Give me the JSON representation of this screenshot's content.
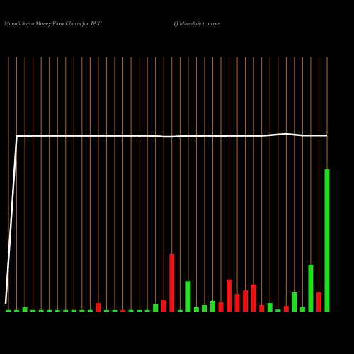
{
  "chart_data": {
    "type": "bar",
    "title": "MunafaSutra  Money Flow  Charts for TAXI",
    "subtitle": "() MunafaSutra.com",
    "categories": [
      null,
      null,
      null,
      null,
      null,
      null,
      null,
      null,
      null,
      null,
      null,
      null,
      null,
      null,
      null,
      null,
      null,
      null,
      null,
      null,
      null,
      null,
      null,
      null,
      null,
      null,
      null,
      null,
      null,
      null,
      null,
      null,
      null,
      null,
      null,
      null,
      null,
      null,
      null,
      null
    ],
    "values": [
      0.6,
      0.6,
      1.7,
      0.6,
      0.6,
      0.6,
      0.6,
      0.6,
      0.6,
      0.6,
      0.6,
      3.3,
      0.6,
      0.6,
      0.6,
      0.6,
      0.6,
      0.6,
      2.8,
      4.4,
      22.5,
      0.6,
      11.9,
      1.7,
      2.5,
      4.2,
      3.6,
      12.5,
      6.9,
      8.3,
      10.6,
      2.5,
      3.3,
      0.8,
      2.2,
      7.5,
      1.7,
      18.3,
      7.5,
      55.8
    ],
    "colors": [
      "#22dd22",
      "#22dd22",
      "#22dd22",
      "#22dd22",
      "#22dd22",
      "#22dd22",
      "#22dd22",
      "#22dd22",
      "#22dd22",
      "#22dd22",
      "#22dd22",
      "#ee1111",
      "#22dd22",
      "#22dd22",
      "#ee1111",
      "#22dd22",
      "#22dd22",
      "#22dd22",
      "#22dd22",
      "#ee1111",
      "#ee1111",
      "#22dd22",
      "#22dd22",
      "#22dd22",
      "#22dd22",
      "#22dd22",
      "#ee1111",
      "#ee1111",
      "#ee1111",
      "#ee1111",
      "#ee1111",
      "#ee1111",
      "#22dd22",
      "#22dd22",
      "#ee1111",
      "#22dd22",
      "#22dd22",
      "#22dd22",
      "#ee1111",
      "#22dd22"
    ],
    "line": {
      "color": "#ffffff",
      "values": [
        3,
        68.9,
        68.9,
        69,
        69,
        69,
        69,
        69,
        69,
        69,
        69,
        69,
        69,
        69,
        69,
        69,
        69,
        69,
        68.9,
        68.6,
        68.6,
        68.8,
        68.9,
        68.9,
        69,
        69,
        68.9,
        69,
        69,
        69,
        69,
        69,
        69.2,
        69.5,
        69.7,
        69.4,
        69.1,
        69.1,
        69.1,
        69.1
      ]
    },
    "ylim": [
      0,
      100
    ],
    "grid_color": "#b8661a"
  }
}
